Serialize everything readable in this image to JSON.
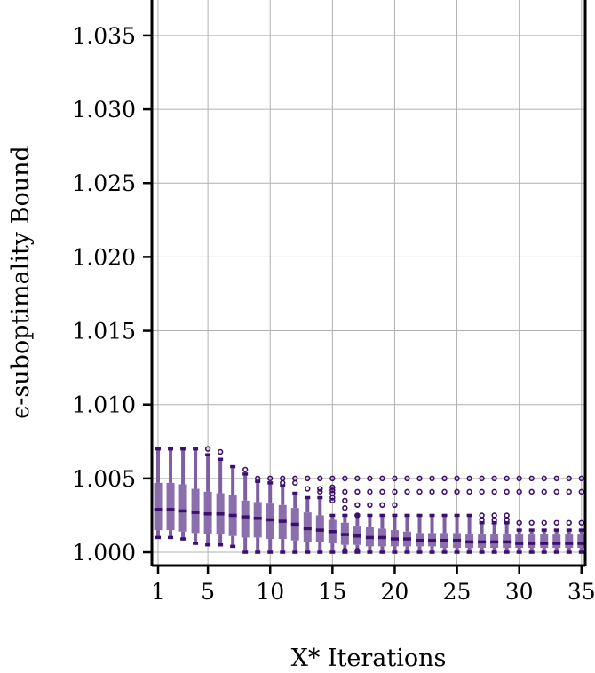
{
  "chart_data": {
    "type": "boxplot",
    "xlabel": "X* Iterations",
    "ylabel": "ϵ-suboptimality Bound",
    "xlim": [
      0.5,
      35.3
    ],
    "ylim": [
      0.9991,
      1.0374
    ],
    "xticks": [
      1,
      5,
      10,
      15,
      20,
      25,
      30,
      35
    ],
    "yticks": [
      1.0,
      1.005,
      1.01,
      1.015,
      1.02,
      1.025,
      1.03,
      1.035
    ],
    "ytick_labels": [
      "1.000",
      "1.005",
      "1.010",
      "1.015",
      "1.020",
      "1.025",
      "1.030",
      "1.035"
    ],
    "grid": true,
    "color": "#3b0f70",
    "box_color": "#7e5fa3",
    "boxes": [
      {
        "x": 1,
        "whislo": 1.001,
        "q1": 1.0015,
        "med": 1.0029,
        "q3": 1.0047,
        "whishi": 1.007,
        "fliers": []
      },
      {
        "x": 2,
        "whislo": 1.001,
        "q1": 1.0015,
        "med": 1.0029,
        "q3": 1.0047,
        "whishi": 1.007,
        "fliers": []
      },
      {
        "x": 3,
        "whislo": 1.0009,
        "q1": 1.0014,
        "med": 1.0028,
        "q3": 1.0046,
        "whishi": 1.007,
        "fliers": []
      },
      {
        "x": 4,
        "whislo": 1.0006,
        "q1": 1.0013,
        "med": 1.0027,
        "q3": 1.0043,
        "whishi": 1.007,
        "fliers": []
      },
      {
        "x": 5,
        "whislo": 1.0005,
        "q1": 1.0012,
        "med": 1.0026,
        "q3": 1.0041,
        "whishi": 1.0066,
        "fliers": [
          1.007
        ]
      },
      {
        "x": 6,
        "whislo": 1.0005,
        "q1": 1.0012,
        "med": 1.0026,
        "q3": 1.004,
        "whishi": 1.0063,
        "fliers": [
          1.0068
        ]
      },
      {
        "x": 7,
        "whislo": 1.0004,
        "q1": 1.0011,
        "med": 1.0025,
        "q3": 1.0039,
        "whishi": 1.0058,
        "fliers": []
      },
      {
        "x": 8,
        "whislo": 1.0,
        "q1": 1.001,
        "med": 1.0024,
        "q3": 1.0035,
        "whishi": 1.0053,
        "fliers": [
          1.0056
        ]
      },
      {
        "x": 9,
        "whislo": 1.0,
        "q1": 1.001,
        "med": 1.0023,
        "q3": 1.0034,
        "whishi": 1.0048,
        "fliers": [
          1.005
        ]
      },
      {
        "x": 10,
        "whislo": 1.0,
        "q1": 1.0009,
        "med": 1.0022,
        "q3": 1.0033,
        "whishi": 1.0047,
        "fliers": [
          1.005
        ]
      },
      {
        "x": 11,
        "whislo": 1.0,
        "q1": 1.0009,
        "med": 1.0021,
        "q3": 1.0032,
        "whishi": 1.0045,
        "fliers": [
          1.005,
          1.0047
        ]
      },
      {
        "x": 12,
        "whislo": 1.0,
        "q1": 1.0008,
        "med": 1.0019,
        "q3": 1.003,
        "whishi": 1.004,
        "fliers": [
          1.005,
          1.0047
        ]
      },
      {
        "x": 13,
        "whislo": 1.0,
        "q1": 1.0007,
        "med": 1.0016,
        "q3": 1.0027,
        "whishi": 1.0037,
        "fliers": [
          1.005,
          1.0043
        ]
      },
      {
        "x": 14,
        "whislo": 1.0,
        "q1": 1.0007,
        "med": 1.0015,
        "q3": 1.0025,
        "whishi": 1.0037,
        "fliers": [
          1.005,
          1.0043,
          1.0041
        ]
      },
      {
        "x": 15,
        "whislo": 1.0,
        "q1": 1.0006,
        "med": 1.0014,
        "q3": 1.0022,
        "whishi": 1.0025,
        "fliers": [
          1.005,
          1.0044,
          1.0042,
          1.004,
          1.0037,
          1.0035
        ]
      },
      {
        "x": 16,
        "whislo": 1.0,
        "q1": 1.0005,
        "med": 1.0012,
        "q3": 1.002,
        "whishi": 1.0025,
        "fliers": [
          1.005,
          1.0041,
          1.0035,
          1.003,
          1.0001
        ]
      },
      {
        "x": 17,
        "whislo": 1.0,
        "q1": 1.0005,
        "med": 1.0011,
        "q3": 1.0018,
        "whishi": 1.0025,
        "fliers": [
          1.005,
          1.0041,
          1.0032,
          1.0025,
          1.0001
        ]
      },
      {
        "x": 18,
        "whislo": 1.0,
        "q1": 1.0004,
        "med": 1.001,
        "q3": 1.0017,
        "whishi": 1.0025,
        "fliers": [
          1.005,
          1.0041,
          1.0032
        ]
      },
      {
        "x": 19,
        "whislo": 1.0,
        "q1": 1.0004,
        "med": 1.001,
        "q3": 1.0016,
        "whishi": 1.0025,
        "fliers": [
          1.005,
          1.0041,
          1.0032
        ]
      },
      {
        "x": 20,
        "whislo": 1.0,
        "q1": 1.0004,
        "med": 1.0009,
        "q3": 1.0015,
        "whishi": 1.0025,
        "fliers": [
          1.005,
          1.0041,
          1.0032
        ]
      },
      {
        "x": 21,
        "whislo": 1.0,
        "q1": 1.0004,
        "med": 1.0009,
        "q3": 1.0014,
        "whishi": 1.0025,
        "fliers": [
          1.005,
          1.0041
        ]
      },
      {
        "x": 22,
        "whislo": 1.0,
        "q1": 1.0004,
        "med": 1.0008,
        "q3": 1.0013,
        "whishi": 1.0025,
        "fliers": [
          1.005,
          1.0041
        ]
      },
      {
        "x": 23,
        "whislo": 1.0,
        "q1": 1.0004,
        "med": 1.0008,
        "q3": 1.0013,
        "whishi": 1.0025,
        "fliers": [
          1.005,
          1.0041
        ]
      },
      {
        "x": 24,
        "whislo": 1.0,
        "q1": 1.0003,
        "med": 1.0008,
        "q3": 1.0013,
        "whishi": 1.0025,
        "fliers": [
          1.005,
          1.0041
        ]
      },
      {
        "x": 25,
        "whislo": 1.0,
        "q1": 1.0003,
        "med": 1.0008,
        "q3": 1.0013,
        "whishi": 1.0025,
        "fliers": [
          1.005,
          1.0041
        ]
      },
      {
        "x": 26,
        "whislo": 1.0,
        "q1": 1.0003,
        "med": 1.0007,
        "q3": 1.0012,
        "whishi": 1.0025,
        "fliers": [
          1.005,
          1.0041
        ]
      },
      {
        "x": 27,
        "whislo": 1.0,
        "q1": 1.0003,
        "med": 1.0007,
        "q3": 1.0012,
        "whishi": 1.002,
        "fliers": [
          1.005,
          1.0041,
          1.0025,
          1.0022
        ]
      },
      {
        "x": 28,
        "whislo": 1.0,
        "q1": 1.0003,
        "med": 1.0007,
        "q3": 1.0012,
        "whishi": 1.002,
        "fliers": [
          1.005,
          1.0041,
          1.0025,
          1.0022
        ]
      },
      {
        "x": 29,
        "whislo": 1.0,
        "q1": 1.0003,
        "med": 1.0007,
        "q3": 1.0012,
        "whishi": 1.002,
        "fliers": [
          1.005,
          1.0041,
          1.0025,
          1.0022
        ]
      },
      {
        "x": 30,
        "whislo": 1.0,
        "q1": 1.0003,
        "med": 1.0006,
        "q3": 1.0012,
        "whishi": 1.0015,
        "fliers": [
          1.005,
          1.0041,
          1.002
        ]
      },
      {
        "x": 31,
        "whislo": 1.0,
        "q1": 1.0003,
        "med": 1.0006,
        "q3": 1.0012,
        "whishi": 1.0015,
        "fliers": [
          1.005,
          1.0041,
          1.002
        ]
      },
      {
        "x": 32,
        "whislo": 1.0,
        "q1": 1.0003,
        "med": 1.0006,
        "q3": 1.0012,
        "whishi": 1.0015,
        "fliers": [
          1.005,
          1.0041,
          1.002
        ]
      },
      {
        "x": 33,
        "whislo": 1.0,
        "q1": 1.0003,
        "med": 1.0006,
        "q3": 1.0012,
        "whishi": 1.0015,
        "fliers": [
          1.005,
          1.0041,
          1.002
        ]
      },
      {
        "x": 34,
        "whislo": 1.0,
        "q1": 1.0003,
        "med": 1.0006,
        "q3": 1.0012,
        "whishi": 1.0015,
        "fliers": [
          1.005,
          1.0041,
          1.002
        ]
      },
      {
        "x": 35,
        "whislo": 1.0,
        "q1": 1.0003,
        "med": 1.0006,
        "q3": 1.0012,
        "whishi": 1.0015,
        "fliers": [
          1.005,
          1.0041,
          1.002
        ]
      }
    ]
  }
}
